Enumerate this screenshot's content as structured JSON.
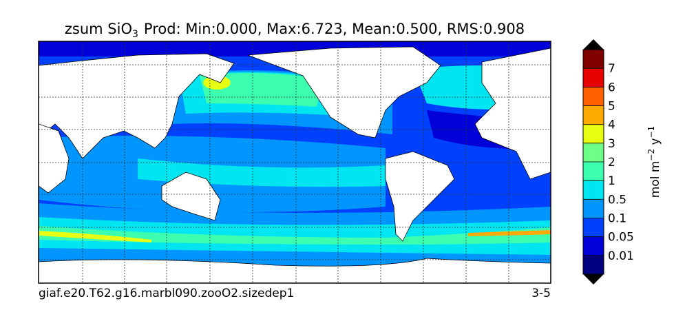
{
  "title": {
    "main": "zsum SiO",
    "subscript": "3",
    "stats": "Prod: Min:0.000, Max:6.723, Mean:0.500, RMS:0.908"
  },
  "colorbar": {
    "ticks": [
      0.01,
      0.05,
      0.1,
      0.5,
      1,
      2,
      3,
      4,
      5,
      6,
      7
    ],
    "colors": [
      "#000080",
      "#0000d8",
      "#0040ff",
      "#0095ff",
      "#00e5f0",
      "#3dffb0",
      "#6eff88",
      "#e6ff12",
      "#ffaa00",
      "#ff6000",
      "#e80000",
      "#800000"
    ],
    "extend_color": "#000000",
    "label": {
      "base": "mol m",
      "exp1": "−2",
      "mid": " y",
      "exp2": "−1"
    }
  },
  "footer": {
    "left": "giaf.e20.T62.g16.marbl090.zooO2.sizedep1",
    "right": "3-5"
  }
}
